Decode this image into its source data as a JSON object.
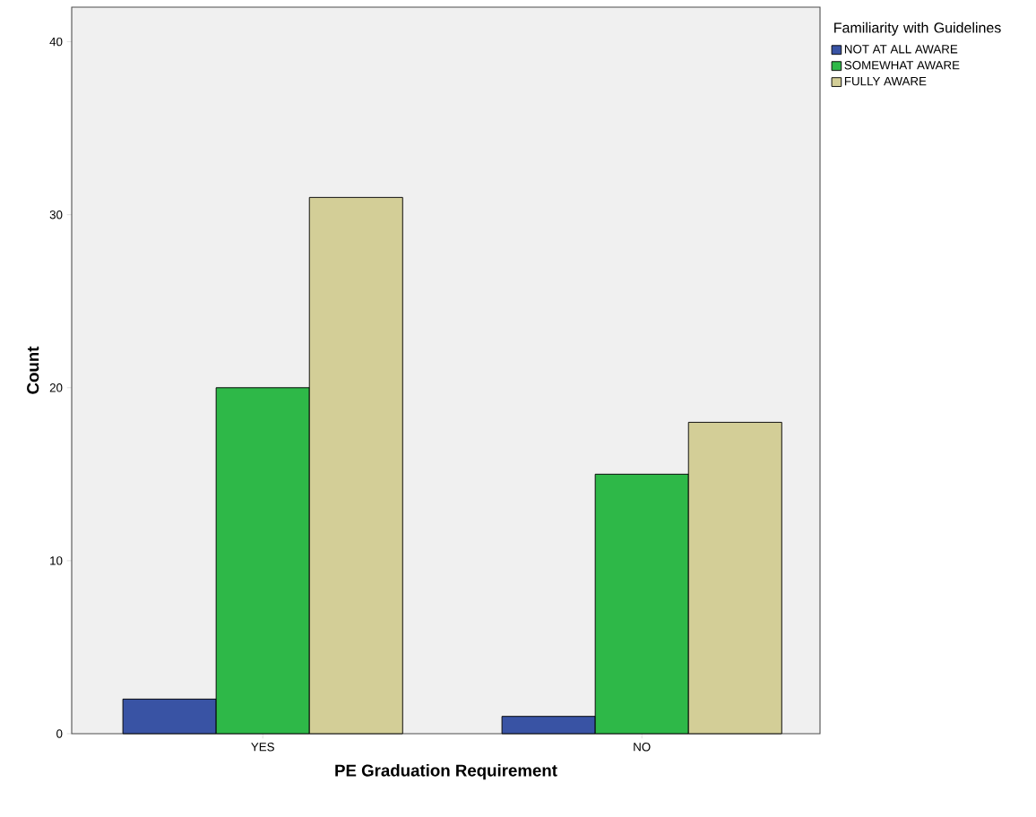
{
  "chart_data": {
    "type": "bar",
    "xlabel": "PE Graduation Requirement",
    "ylabel": "Count",
    "legend_title": "Familiarity with Guidelines",
    "categories": [
      "YES",
      "NO"
    ],
    "series": [
      {
        "name": "NOT AT ALL AWARE",
        "color": "#3953a4",
        "values": [
          2,
          1
        ]
      },
      {
        "name": "SOMEWHAT AWARE",
        "color": "#2eb848",
        "values": [
          20,
          15
        ]
      },
      {
        "name": "FULLY AWARE",
        "color": "#d3ce97",
        "values": [
          31,
          18
        ]
      }
    ],
    "ylim": [
      0,
      42
    ],
    "yticks": [
      0,
      10,
      20,
      30,
      40
    ],
    "grid": false,
    "legend": "right"
  }
}
